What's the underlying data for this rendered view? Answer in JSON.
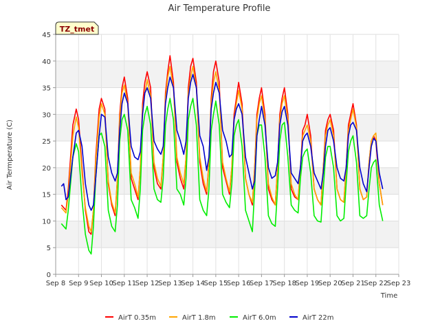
{
  "chart_data": {
    "type": "line",
    "title": "Air Temperature Profile",
    "site_badge": "TZ_tmet",
    "xlabel": "Time",
    "ylabel": "Air Termperature (C)",
    "ylim": [
      0,
      45
    ],
    "yticks": [
      0,
      5,
      10,
      15,
      20,
      25,
      30,
      35,
      40,
      45
    ],
    "xlim": [
      8,
      23
    ],
    "xtick_values": [
      8,
      9,
      10,
      11,
      12,
      13,
      14,
      15,
      16,
      17,
      18,
      19,
      20,
      21,
      22,
      23
    ],
    "xtick_labels": [
      "Sep 8",
      "Sep 9",
      "Sep 10",
      "Sep 11",
      "Sep 12",
      "Sep 13",
      "Sep 14",
      "Sep 15",
      "Sep 16",
      "Sep 17",
      "Sep 18",
      "Sep 19",
      "Sep 20",
      "Sep 21",
      "Sep 22",
      "Sep 23"
    ],
    "grid": true,
    "background_bands": "alternating light gray",
    "legend_position": "bottom",
    "series": [
      {
        "name": "AirT 0.35m",
        "color": "#ff0000",
        "x": [
          8.25,
          8.45,
          8.55,
          8.75,
          8.9,
          9.0,
          9.15,
          9.3,
          9.45,
          9.55,
          9.65,
          9.75,
          9.9,
          10.0,
          10.15,
          10.3,
          10.45,
          10.6,
          10.7,
          10.8,
          10.9,
          11.0,
          11.15,
          11.3,
          11.45,
          11.6,
          11.7,
          11.8,
          11.9,
          12.0,
          12.15,
          12.3,
          12.45,
          12.6,
          12.7,
          12.8,
          12.9,
          13.0,
          13.15,
          13.3,
          13.45,
          13.6,
          13.7,
          13.8,
          13.9,
          14.0,
          14.15,
          14.3,
          14.45,
          14.6,
          14.7,
          14.8,
          14.9,
          15.0,
          15.15,
          15.3,
          15.45,
          15.6,
          15.7,
          15.8,
          15.9,
          16.0,
          16.15,
          16.3,
          16.45,
          16.6,
          16.7,
          16.8,
          16.9,
          17.0,
          17.15,
          17.3,
          17.45,
          17.6,
          17.7,
          17.8,
          17.9,
          18.0,
          18.15,
          18.3,
          18.45,
          18.6,
          18.7,
          18.8,
          18.9,
          19.0,
          19.15,
          19.3,
          19.45,
          19.6,
          19.7,
          19.8,
          19.9,
          20.0,
          20.15,
          20.3,
          20.45,
          20.6,
          20.7,
          20.8,
          20.9,
          21.0,
          21.15,
          21.3,
          21.45,
          21.6,
          21.7,
          21.8,
          21.9,
          22.0,
          22.15,
          22.3
        ],
        "values": [
          13.0,
          12.0,
          16.0,
          28.0,
          31.0,
          29.0,
          20.0,
          12.0,
          8.0,
          7.5,
          12.0,
          22.0,
          31.0,
          33.0,
          31.0,
          17.0,
          13.0,
          11.0,
          18.0,
          30.0,
          35.0,
          37.0,
          33.0,
          18.0,
          16.0,
          14.0,
          20.0,
          32.0,
          36.0,
          38.0,
          35.0,
          20.0,
          17.0,
          16.0,
          22.0,
          34.0,
          38.0,
          41.0,
          36.0,
          21.0,
          18.0,
          16.0,
          22.0,
          35.0,
          39.0,
          40.5,
          36.0,
          21.0,
          17.0,
          15.0,
          21.0,
          33.0,
          38.0,
          40.0,
          36.0,
          20.0,
          17.5,
          15.0,
          20.0,
          30.0,
          33.0,
          36.0,
          32.0,
          18.0,
          15.0,
          13.0,
          20.0,
          30.0,
          33.0,
          35.0,
          30.0,
          16.0,
          14.0,
          13.0,
          20.0,
          30.0,
          33.0,
          35.0,
          30.0,
          16.0,
          14.5,
          14.0,
          20.0,
          27.0,
          28.0,
          30.0,
          26.0,
          16.0,
          14.0,
          13.0,
          20.0,
          27.0,
          29.0,
          30.0,
          27.0,
          16.0,
          14.0,
          13.5,
          20.0,
          28.0,
          30.0,
          32.0,
          28.0,
          16.0,
          14.0,
          14.5,
          21.0,
          25.0,
          26.0,
          25.0,
          17.0,
          13.0
        ]
      },
      {
        "name": "AirT 1.8m",
        "color": "#ffa500",
        "x": [
          8.25,
          8.45,
          8.55,
          8.75,
          8.9,
          9.0,
          9.15,
          9.3,
          9.45,
          9.55,
          9.65,
          9.75,
          9.9,
          10.0,
          10.15,
          10.3,
          10.45,
          10.6,
          10.7,
          10.8,
          10.9,
          11.0,
          11.15,
          11.3,
          11.45,
          11.6,
          11.7,
          11.8,
          11.9,
          12.0,
          12.15,
          12.3,
          12.45,
          12.6,
          12.7,
          12.8,
          12.9,
          13.0,
          13.15,
          13.3,
          13.45,
          13.6,
          13.7,
          13.8,
          13.9,
          14.0,
          14.15,
          14.3,
          14.45,
          14.6,
          14.7,
          14.8,
          14.9,
          15.0,
          15.15,
          15.3,
          15.45,
          15.6,
          15.7,
          15.8,
          15.9,
          16.0,
          16.15,
          16.3,
          16.45,
          16.6,
          16.7,
          16.8,
          16.9,
          17.0,
          17.15,
          17.3,
          17.45,
          17.6,
          17.7,
          17.8,
          17.9,
          18.0,
          18.15,
          18.3,
          18.45,
          18.6,
          18.7,
          18.8,
          18.9,
          19.0,
          19.15,
          19.3,
          19.45,
          19.6,
          19.7,
          19.8,
          19.9,
          20.0,
          20.15,
          20.3,
          20.45,
          20.6,
          20.7,
          20.8,
          20.9,
          21.0,
          21.15,
          21.3,
          21.45,
          21.6,
          21.7,
          21.8,
          21.9,
          22.0,
          22.15,
          22.3
        ],
        "values": [
          12.5,
          11.5,
          15.0,
          26.0,
          29.5,
          27.5,
          19.0,
          12.5,
          9.0,
          8.0,
          12.0,
          21.0,
          29.5,
          32.0,
          30.0,
          17.5,
          13.5,
          11.5,
          18.0,
          29.0,
          34.0,
          35.5,
          32.0,
          19.0,
          17.0,
          14.5,
          20.0,
          31.0,
          34.0,
          36.5,
          33.5,
          21.0,
          18.0,
          16.5,
          22.0,
          33.0,
          37.0,
          39.0,
          35.0,
          22.0,
          19.0,
          17.0,
          22.0,
          34.0,
          37.0,
          39.0,
          35.0,
          22.0,
          18.0,
          15.5,
          21.0,
          32.0,
          36.0,
          38.0,
          34.5,
          21.0,
          18.0,
          15.5,
          20.0,
          29.0,
          32.0,
          34.5,
          31.0,
          18.0,
          15.0,
          13.5,
          20.0,
          29.0,
          32.0,
          33.5,
          29.0,
          17.0,
          14.5,
          13.0,
          20.0,
          29.0,
          32.0,
          33.5,
          29.0,
          17.0,
          15.0,
          14.0,
          20.0,
          26.0,
          27.0,
          28.0,
          25.0,
          16.0,
          14.0,
          13.0,
          20.0,
          26.0,
          28.0,
          29.0,
          26.0,
          16.0,
          14.0,
          13.5,
          20.0,
          27.0,
          29.0,
          31.0,
          27.5,
          16.0,
          14.0,
          14.5,
          21.0,
          25.0,
          26.0,
          26.5,
          17.0,
          13.0
        ]
      },
      {
        "name": "AirT 6.0m",
        "color": "#00ee00",
        "x": [
          8.25,
          8.45,
          8.55,
          8.75,
          8.9,
          9.0,
          9.15,
          9.3,
          9.45,
          9.55,
          9.65,
          9.75,
          9.9,
          10.0,
          10.15,
          10.3,
          10.45,
          10.6,
          10.7,
          10.8,
          10.9,
          11.0,
          11.15,
          11.3,
          11.45,
          11.6,
          11.7,
          11.8,
          11.9,
          12.0,
          12.15,
          12.3,
          12.45,
          12.6,
          12.7,
          12.8,
          12.9,
          13.0,
          13.15,
          13.3,
          13.45,
          13.6,
          13.7,
          13.8,
          13.9,
          14.0,
          14.15,
          14.3,
          14.45,
          14.6,
          14.7,
          14.8,
          14.9,
          15.0,
          15.15,
          15.3,
          15.45,
          15.6,
          15.7,
          15.8,
          15.9,
          16.0,
          16.15,
          16.3,
          16.45,
          16.6,
          16.7,
          16.8,
          16.9,
          17.0,
          17.15,
          17.3,
          17.45,
          17.6,
          17.7,
          17.8,
          17.9,
          18.0,
          18.15,
          18.3,
          18.45,
          18.6,
          18.7,
          18.8,
          18.9,
          19.0,
          19.15,
          19.3,
          19.45,
          19.6,
          19.7,
          19.8,
          19.9,
          20.0,
          20.15,
          20.3,
          20.45,
          20.6,
          20.7,
          20.8,
          20.9,
          21.0,
          21.15,
          21.3,
          21.45,
          21.6,
          21.7,
          21.8,
          21.9,
          22.0,
          22.15,
          22.3
        ],
        "values": [
          9.5,
          8.5,
          12.0,
          22.0,
          24.5,
          23.0,
          14.0,
          7.5,
          4.5,
          3.8,
          9.0,
          18.0,
          26.0,
          26.5,
          24.0,
          12.0,
          9.0,
          8.0,
          13.0,
          25.0,
          29.0,
          30.0,
          27.0,
          14.0,
          12.5,
          10.5,
          16.0,
          27.0,
          30.0,
          31.5,
          28.0,
          16.0,
          14.0,
          13.5,
          18.0,
          28.0,
          31.0,
          33.0,
          29.0,
          16.0,
          15.0,
          13.0,
          18.0,
          29.0,
          31.5,
          33.0,
          28.0,
          14.0,
          12.0,
          11.0,
          16.0,
          27.0,
          30.0,
          32.5,
          28.0,
          15.0,
          13.5,
          12.5,
          17.0,
          26.0,
          28.0,
          29.0,
          24.0,
          12.0,
          10.0,
          8.0,
          16.0,
          26.0,
          28.0,
          28.0,
          22.0,
          11.0,
          9.5,
          9.0,
          16.0,
          25.0,
          28.0,
          28.5,
          22.0,
          13.0,
          12.0,
          11.5,
          18.0,
          22.0,
          23.0,
          23.5,
          19.0,
          11.0,
          10.0,
          9.8,
          16.0,
          22.0,
          24.0,
          24.0,
          20.0,
          11.0,
          10.0,
          10.5,
          17.0,
          23.0,
          25.0,
          26.0,
          21.0,
          11.0,
          10.5,
          11.0,
          16.0,
          20.0,
          21.0,
          21.5,
          13.0,
          10.0
        ]
      },
      {
        "name": "AirT 22m",
        "color": "#0000cc",
        "x": [
          8.25,
          8.35,
          8.45,
          8.55,
          8.75,
          8.9,
          9.0,
          9.15,
          9.3,
          9.45,
          9.55,
          9.65,
          9.75,
          9.9,
          10.0,
          10.15,
          10.3,
          10.45,
          10.6,
          10.7,
          10.8,
          10.9,
          11.0,
          11.15,
          11.3,
          11.45,
          11.6,
          11.7,
          11.8,
          11.9,
          12.0,
          12.15,
          12.3,
          12.45,
          12.6,
          12.7,
          12.8,
          12.9,
          13.0,
          13.15,
          13.3,
          13.45,
          13.6,
          13.7,
          13.8,
          13.9,
          14.0,
          14.15,
          14.3,
          14.45,
          14.6,
          14.7,
          14.8,
          14.9,
          15.0,
          15.15,
          15.3,
          15.45,
          15.6,
          15.7,
          15.8,
          15.9,
          16.0,
          16.15,
          16.3,
          16.45,
          16.6,
          16.7,
          16.8,
          16.9,
          17.0,
          17.15,
          17.3,
          17.45,
          17.6,
          17.7,
          17.8,
          17.9,
          18.0,
          18.15,
          18.3,
          18.45,
          18.6,
          18.7,
          18.8,
          18.9,
          19.0,
          19.15,
          19.3,
          19.45,
          19.6,
          19.7,
          19.8,
          19.9,
          20.0,
          20.15,
          20.3,
          20.45,
          20.6,
          20.7,
          20.8,
          20.9,
          21.0,
          21.15,
          21.3,
          21.45,
          21.6,
          21.7,
          21.8,
          21.9,
          22.0,
          22.15,
          22.3
        ],
        "values": [
          16.5,
          17.0,
          14.0,
          14.5,
          22.0,
          26.5,
          27.0,
          24.0,
          17.0,
          13.0,
          12.0,
          13.0,
          18.0,
          26.0,
          30.0,
          29.5,
          22.0,
          19.0,
          17.5,
          19.0,
          27.0,
          32.0,
          34.0,
          32.0,
          24.0,
          22.0,
          21.5,
          23.0,
          30.0,
          34.0,
          35.0,
          33.0,
          25.0,
          23.5,
          22.5,
          24.0,
          32.0,
          35.0,
          37.0,
          35.0,
          27.0,
          25.0,
          22.5,
          25.0,
          33.0,
          36.0,
          37.5,
          35.0,
          26.0,
          24.0,
          19.5,
          22.0,
          31.0,
          34.0,
          36.0,
          34.0,
          27.0,
          25.0,
          22.0,
          22.5,
          29.0,
          31.0,
          32.0,
          30.0,
          22.0,
          19.0,
          16.0,
          17.5,
          26.0,
          29.0,
          31.5,
          28.0,
          20.0,
          18.0,
          18.5,
          21.0,
          28.0,
          30.5,
          31.5,
          28.0,
          19.0,
          18.0,
          17.0,
          20.0,
          25.0,
          26.0,
          26.5,
          24.0,
          19.0,
          17.5,
          16.0,
          19.0,
          24.0,
          27.0,
          27.5,
          25.0,
          20.0,
          18.0,
          17.5,
          20.0,
          26.0,
          28.0,
          28.5,
          27.0,
          20.0,
          17.0,
          15.5,
          20.0,
          24.0,
          25.5,
          25.0,
          19.0,
          16.0
        ]
      }
    ]
  }
}
